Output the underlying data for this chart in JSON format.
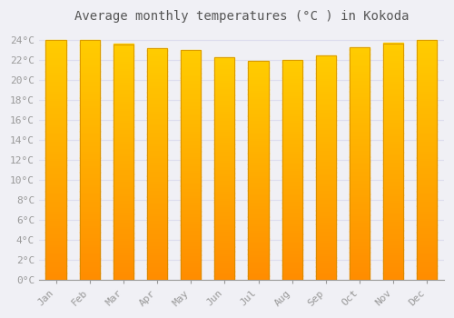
{
  "title": "Average monthly temperatures (°C ) in Kokoda",
  "months": [
    "Jan",
    "Feb",
    "Mar",
    "Apr",
    "May",
    "Jun",
    "Jul",
    "Aug",
    "Sep",
    "Oct",
    "Nov",
    "Dec"
  ],
  "values": [
    24.0,
    24.0,
    23.6,
    23.2,
    23.0,
    22.3,
    21.9,
    22.0,
    22.5,
    23.3,
    23.7,
    24.0
  ],
  "bar_color_top": "#FFB800",
  "bar_color_bottom": "#FF8C00",
  "bar_edge_color": "#CC8800",
  "ylim": [
    0,
    25
  ],
  "ytick_max": 24,
  "ytick_step": 2,
  "background_color": "#F0F0F5",
  "plot_bg_color": "#F0F0F5",
  "grid_color": "#DDDDEE",
  "title_fontsize": 10,
  "tick_fontsize": 8,
  "title_font_color": "#555555",
  "tick_font_color": "#999999",
  "bar_width": 0.6
}
